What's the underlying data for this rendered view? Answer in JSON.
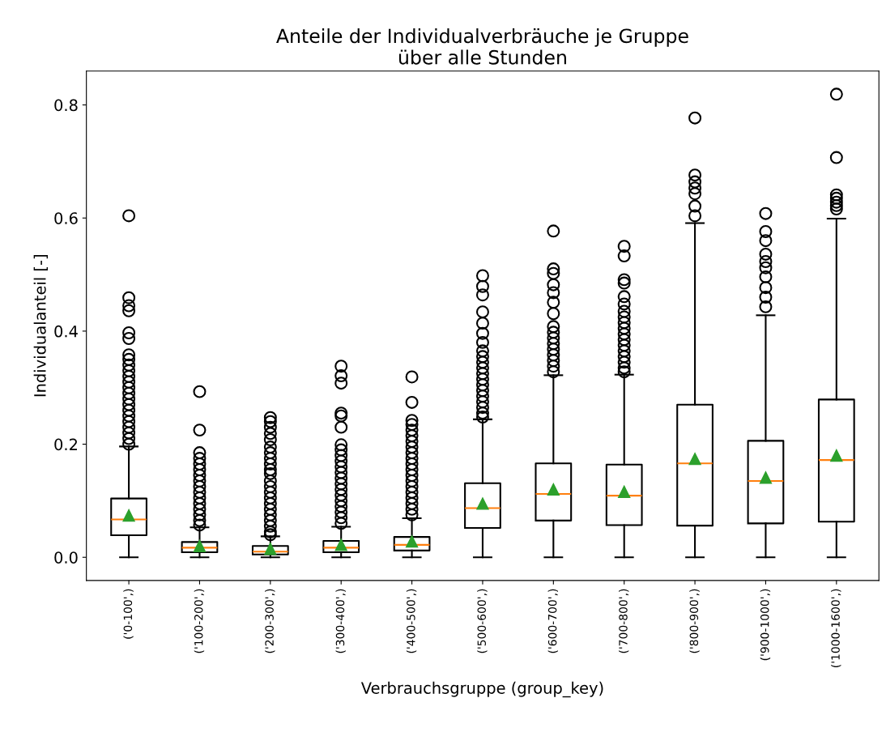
{
  "chart_data": {
    "type": "box",
    "title": "Anteile der Individualverbräuche je Gruppe\nüber alle Stunden",
    "xlabel": "Verbrauchsgruppe (group_key)",
    "ylabel": "Individualanteil [-]",
    "categories": [
      "('0-100',)",
      "('100-200',)",
      "('200-300',)",
      "('300-400',)",
      "('400-500',)",
      "('500-600',)",
      "('600-700',)",
      "('700-800',)",
      "('800-900',)",
      "('900-1000',)",
      "('1000-1600',)"
    ],
    "ylim": [
      -0.041,
      0.86
    ],
    "yticks": [
      {
        "value": 0,
        "label": "0.0"
      },
      {
        "value": 0.2,
        "label": "0.2"
      },
      {
        "value": 0.4,
        "label": "0.4"
      },
      {
        "value": 0.6,
        "label": "0.6"
      },
      {
        "value": 0.8,
        "label": "0.8"
      }
    ],
    "grid": false,
    "legend": false,
    "boxes": [
      {
        "low": 0,
        "q1": 0.039,
        "median": 0.067,
        "q3": 0.104,
        "high": 0.196,
        "mean": 0.074,
        "outliers": [
          0.604,
          0.459,
          0.445,
          0.436,
          0.397,
          0.387,
          0.358,
          0.35,
          0.34,
          0.33,
          0.32,
          0.31,
          0.3,
          0.29,
          0.28,
          0.27,
          0.26,
          0.25,
          0.24,
          0.23,
          0.22,
          0.21,
          0.2
        ]
      },
      {
        "low": 0,
        "q1": 0.009,
        "median": 0.017,
        "q3": 0.027,
        "high": 0.053,
        "mean": 0.02,
        "outliers": [
          0.293,
          0.225,
          0.185,
          0.175,
          0.165,
          0.155,
          0.145,
          0.135,
          0.125,
          0.115,
          0.105,
          0.095,
          0.085,
          0.075,
          0.065,
          0.057
        ]
      },
      {
        "low": 0,
        "q1": 0.005,
        "median": 0.01,
        "q3": 0.02,
        "high": 0.037,
        "mean": 0.015,
        "outliers": [
          0.247,
          0.24,
          0.23,
          0.219,
          0.208,
          0.195,
          0.185,
          0.175,
          0.165,
          0.155,
          0.148,
          0.135,
          0.125,
          0.115,
          0.105,
          0.095,
          0.085,
          0.075,
          0.065,
          0.055,
          0.045,
          0.04
        ]
      },
      {
        "low": 0,
        "q1": 0.009,
        "median": 0.017,
        "q3": 0.029,
        "high": 0.054,
        "mean": 0.022,
        "outliers": [
          0.338,
          0.321,
          0.308,
          0.255,
          0.25,
          0.23,
          0.199,
          0.19,
          0.18,
          0.17,
          0.16,
          0.15,
          0.14,
          0.13,
          0.12,
          0.11,
          0.1,
          0.09,
          0.08,
          0.07,
          0.06
        ]
      },
      {
        "low": 0,
        "q1": 0.012,
        "median": 0.022,
        "q3": 0.036,
        "high": 0.069,
        "mean": 0.028,
        "outliers": [
          0.319,
          0.274,
          0.242,
          0.235,
          0.225,
          0.215,
          0.205,
          0.195,
          0.185,
          0.175,
          0.165,
          0.155,
          0.145,
          0.135,
          0.125,
          0.115,
          0.105,
          0.095,
          0.085,
          0.075
        ]
      },
      {
        "low": 0,
        "q1": 0.052,
        "median": 0.087,
        "q3": 0.131,
        "high": 0.244,
        "mean": 0.095,
        "outliers": [
          0.498,
          0.479,
          0.464,
          0.434,
          0.414,
          0.396,
          0.38,
          0.365,
          0.355,
          0.345,
          0.335,
          0.325,
          0.315,
          0.305,
          0.295,
          0.285,
          0.275,
          0.265,
          0.255,
          0.248
        ]
      },
      {
        "low": 0,
        "q1": 0.065,
        "median": 0.112,
        "q3": 0.166,
        "high": 0.322,
        "mean": 0.12,
        "outliers": [
          0.577,
          0.51,
          0.502,
          0.482,
          0.468,
          0.451,
          0.431,
          0.408,
          0.398,
          0.388,
          0.378,
          0.368,
          0.358,
          0.348,
          0.338,
          0.328
        ]
      },
      {
        "low": 0,
        "q1": 0.057,
        "median": 0.109,
        "q3": 0.164,
        "high": 0.323,
        "mean": 0.116,
        "outliers": [
          0.55,
          0.533,
          0.491,
          0.485,
          0.461,
          0.448,
          0.435,
          0.425,
          0.415,
          0.405,
          0.395,
          0.385,
          0.375,
          0.365,
          0.355,
          0.345,
          0.335,
          0.328
        ]
      },
      {
        "low": 0,
        "q1": 0.056,
        "median": 0.166,
        "q3": 0.27,
        "high": 0.591,
        "mean": 0.174,
        "outliers": [
          0.777,
          0.676,
          0.664,
          0.653,
          0.643,
          0.621,
          0.604
        ]
      },
      {
        "low": 0,
        "q1": 0.06,
        "median": 0.135,
        "q3": 0.206,
        "high": 0.428,
        "mean": 0.141,
        "outliers": [
          0.608,
          0.576,
          0.56,
          0.536,
          0.523,
          0.512,
          0.496,
          0.477,
          0.46,
          0.443
        ]
      },
      {
        "low": 0,
        "q1": 0.063,
        "median": 0.172,
        "q3": 0.279,
        "high": 0.599,
        "mean": 0.18,
        "outliers": [
          0.819,
          0.707,
          0.641,
          0.635,
          0.628,
          0.622,
          0.616
        ]
      }
    ]
  }
}
